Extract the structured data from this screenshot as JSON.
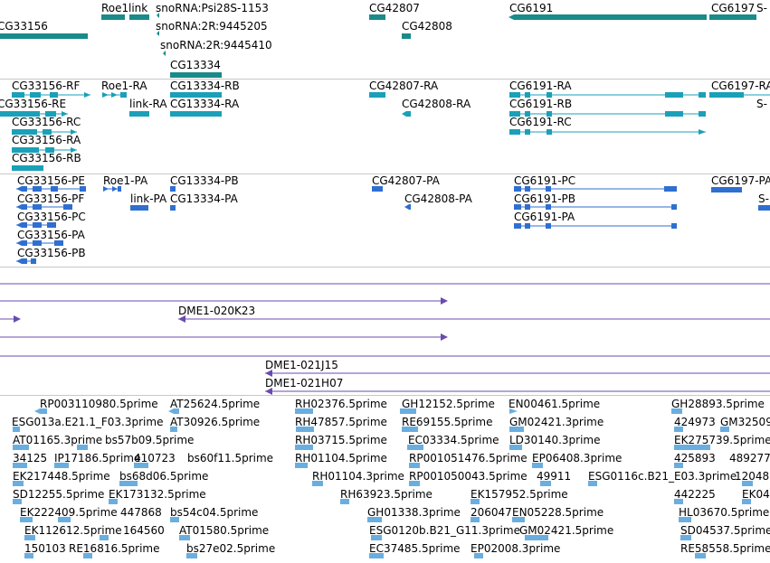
{
  "colors": {
    "gene": "#1a8a8a",
    "mrna": "#1aa0b8",
    "cds": "#2f6fd0",
    "clone": "#6a4bb0",
    "est": "#6aaee0",
    "separator": "#c8c8c8"
  },
  "tracks": {
    "genes": {
      "labels": [
        "CG33156",
        "Roe1",
        "link",
        "snoRNA:Psi28S-1153",
        "snoRNA:2R:9445205",
        "snoRNA:2R:9445410",
        "CG13334",
        "CG42807",
        "CG42808",
        "CG6191",
        "CG6197",
        "S-"
      ]
    },
    "transcripts": {
      "labels": [
        "CG33156-RF",
        "CG33156-RE",
        "CG33156-RC",
        "CG33156-RA",
        "CG33156-RB",
        "Roe1-RA",
        "link-RA",
        "CG13334-RB",
        "CG13334-RA",
        "CG42807-RA",
        "CG42808-RA",
        "CG6191-RA",
        "CG6191-RB",
        "CG6191-RC",
        "CG6197-RA",
        "S-"
      ]
    },
    "proteins": {
      "labels": [
        "CG33156-PE",
        "CG33156-PF",
        "CG33156-PC",
        "CG33156-PA",
        "CG33156-PB",
        "Roe1-PA",
        "link-PA",
        "CG13334-PB",
        "CG13334-PA",
        "CG42807-PA",
        "CG42808-PA",
        "CG6191-PC",
        "CG6191-PB",
        "CG6191-PA",
        "CG6197-PA",
        "S-"
      ]
    },
    "clones": {
      "labels": [
        "DME1-020K23",
        "DME1-021J15",
        "DME1-021H07"
      ]
    },
    "ests": {
      "labels": [
        "RP003110980.5prime",
        "AT25624.5prime",
        "RH02376.5prime",
        "GH12152.5prime",
        "EN00461.5prime",
        "GH28893.5prime",
        "ESG013a.E21.1_F03.3prime",
        "AT30926.5prime",
        "RH47857.5prime",
        "RE69155.5prime",
        "GM02421.3prime",
        "424973",
        "GM32509",
        "AT01165.3prime",
        "bs57b09.5prime",
        "RH03715.5prime",
        "EC03334.5prime",
        "LD30140.3prime",
        "EK275739.5prime",
        "34125",
        "IP17186.5prime",
        "410723",
        "bs60f11.5prime",
        "RH01104.5prime",
        "RP001051476.5prime",
        "EP06408.3prime",
        "425893",
        "489277",
        "EK217448.5prime",
        "bs68d06.5prime",
        "RH01104.3prime",
        "RP001050043.5prime",
        "49911",
        "ESG0116c.B21_E03.3prime",
        "12048",
        "SD12255.5prime",
        "EK173132.5prime",
        "RH63923.5prime",
        "EK157952.5prime",
        "442225",
        "EK04",
        "EK222409.5prime",
        "447868",
        "bs54c04.5prime",
        "GH01338.3prime",
        "206047",
        "EN05228.5prime",
        "HL03670.5prime",
        "EK112612.5prime",
        "164560",
        "AT01580.5prime",
        "ESG0120b.B21_G11.3prime",
        "GM02421.5prime",
        "SD04537.5prime",
        "150103",
        "RE16816.5prime",
        "bs27e02.5prime",
        "EC37485.5prime",
        "EP02008.3prime",
        "RE58558.5prime"
      ]
    }
  }
}
